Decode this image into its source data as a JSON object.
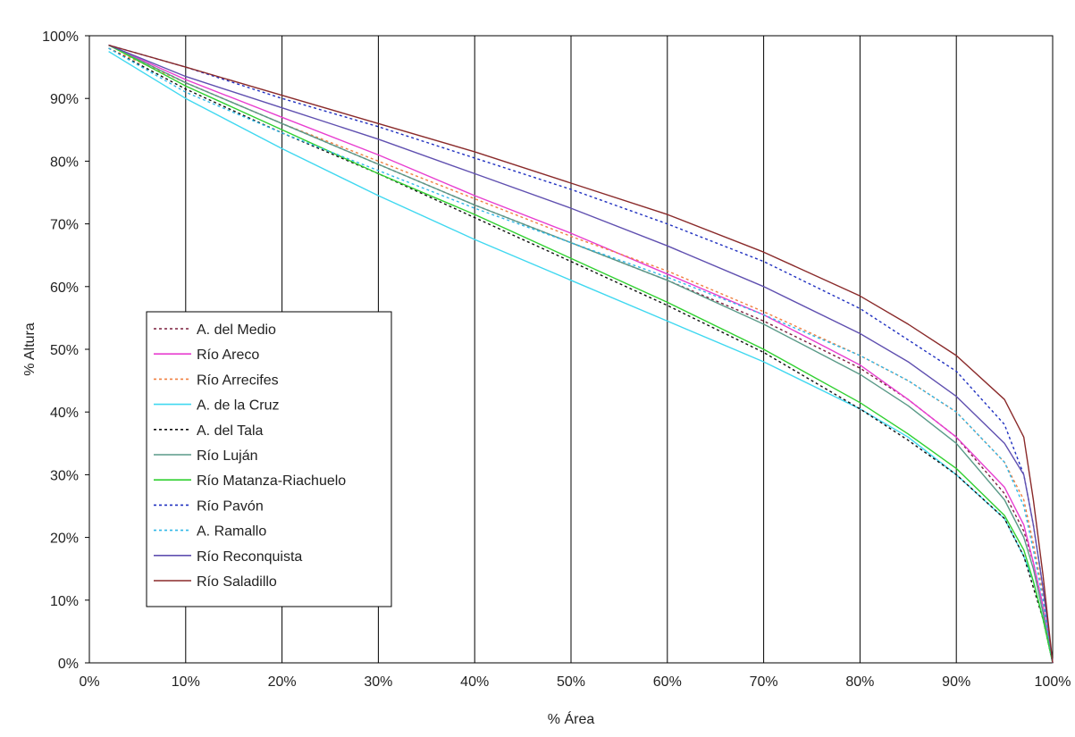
{
  "chart_data": {
    "type": "line",
    "title": "",
    "xlabel": "% Área",
    "ylabel": "% Altura",
    "xlim": [
      0,
      100
    ],
    "ylim": [
      0,
      100
    ],
    "x_ticks": [
      "0%",
      "10%",
      "20%",
      "30%",
      "40%",
      "50%",
      "60%",
      "70%",
      "80%",
      "90%",
      "100%"
    ],
    "y_ticks": [
      "0%",
      "10%",
      "20%",
      "30%",
      "40%",
      "50%",
      "60%",
      "70%",
      "80%",
      "90%",
      "100%"
    ],
    "grid": "vertical",
    "legend_position": "left-middle",
    "series": [
      {
        "name": "A. del Medio",
        "color": "#7a1f3d",
        "dash": "dotted",
        "points": [
          [
            2,
            98.5
          ],
          [
            10,
            92.5
          ],
          [
            20,
            86
          ],
          [
            30,
            79.5
          ],
          [
            40,
            73
          ],
          [
            50,
            67
          ],
          [
            60,
            61
          ],
          [
            70,
            54.5
          ],
          [
            80,
            47
          ],
          [
            85,
            42
          ],
          [
            90,
            36
          ],
          [
            95,
            27
          ],
          [
            97,
            21
          ],
          [
            98,
            16
          ],
          [
            99,
            9
          ],
          [
            100,
            0
          ]
        ]
      },
      {
        "name": "Río Areco",
        "color": "#e83ed0",
        "dash": "solid",
        "points": [
          [
            2,
            98.5
          ],
          [
            10,
            93
          ],
          [
            20,
            87
          ],
          [
            30,
            81
          ],
          [
            40,
            74.5
          ],
          [
            50,
            68.5
          ],
          [
            60,
            62
          ],
          [
            70,
            55.5
          ],
          [
            80,
            47.5
          ],
          [
            85,
            42
          ],
          [
            90,
            36
          ],
          [
            95,
            28
          ],
          [
            97,
            22
          ],
          [
            98,
            16
          ],
          [
            99,
            9
          ],
          [
            100,
            0
          ]
        ]
      },
      {
        "name": "Río Arrecifes",
        "color": "#f08040",
        "dash": "dotted",
        "points": [
          [
            2,
            98
          ],
          [
            10,
            92.5
          ],
          [
            20,
            86
          ],
          [
            30,
            80
          ],
          [
            40,
            74
          ],
          [
            50,
            68
          ],
          [
            60,
            62.5
          ],
          [
            70,
            56
          ],
          [
            80,
            49
          ],
          [
            85,
            45
          ],
          [
            90,
            40
          ],
          [
            95,
            32
          ],
          [
            97,
            26
          ],
          [
            98,
            19
          ],
          [
            99,
            11
          ],
          [
            100,
            0
          ]
        ]
      },
      {
        "name": "A. de la Cruz",
        "color": "#40d8f0",
        "dash": "solid",
        "points": [
          [
            2,
            97.5
          ],
          [
            10,
            90
          ],
          [
            20,
            82
          ],
          [
            30,
            74.5
          ],
          [
            40,
            67.5
          ],
          [
            50,
            61
          ],
          [
            60,
            54.5
          ],
          [
            70,
            48
          ],
          [
            80,
            40.5
          ],
          [
            85,
            36
          ],
          [
            90,
            30
          ],
          [
            95,
            23
          ],
          [
            97,
            17
          ],
          [
            98,
            13
          ],
          [
            99,
            7
          ],
          [
            100,
            0
          ]
        ]
      },
      {
        "name": "A. del Tala",
        "color": "#111111",
        "dash": "dotted",
        "points": [
          [
            2,
            98
          ],
          [
            10,
            91.5
          ],
          [
            20,
            84.5
          ],
          [
            30,
            78
          ],
          [
            40,
            71
          ],
          [
            50,
            64
          ],
          [
            60,
            57
          ],
          [
            70,
            49.5
          ],
          [
            80,
            40.5
          ],
          [
            85,
            35.5
          ],
          [
            90,
            30
          ],
          [
            95,
            23
          ],
          [
            97,
            17
          ],
          [
            98,
            12
          ],
          [
            99,
            7
          ],
          [
            100,
            0
          ]
        ]
      },
      {
        "name": "Río Luján",
        "color": "#5a9a88",
        "dash": "solid",
        "points": [
          [
            2,
            98.5
          ],
          [
            10,
            92.5
          ],
          [
            20,
            86
          ],
          [
            30,
            79.5
          ],
          [
            40,
            73
          ],
          [
            50,
            67
          ],
          [
            60,
            61
          ],
          [
            70,
            54
          ],
          [
            80,
            46
          ],
          [
            85,
            41
          ],
          [
            90,
            35
          ],
          [
            95,
            26
          ],
          [
            97,
            20
          ],
          [
            98,
            15
          ],
          [
            99,
            8
          ],
          [
            100,
            0
          ]
        ]
      },
      {
        "name": "Río Matanza-Riachuelo",
        "color": "#30d030",
        "dash": "solid",
        "points": [
          [
            2,
            98.5
          ],
          [
            10,
            92
          ],
          [
            20,
            85
          ],
          [
            30,
            78
          ],
          [
            40,
            71.5
          ],
          [
            50,
            64.5
          ],
          [
            60,
            57.5
          ],
          [
            70,
            50
          ],
          [
            80,
            41.5
          ],
          [
            85,
            36.5
          ],
          [
            90,
            31
          ],
          [
            95,
            23.5
          ],
          [
            97,
            18
          ],
          [
            98,
            13
          ],
          [
            99,
            7
          ],
          [
            100,
            0
          ]
        ]
      },
      {
        "name": "Río Pavón",
        "color": "#2030c0",
        "dash": "dotted",
        "points": [
          [
            2,
            98.5
          ],
          [
            10,
            95
          ],
          [
            20,
            90
          ],
          [
            30,
            85.5
          ],
          [
            40,
            80.5
          ],
          [
            50,
            75.5
          ],
          [
            60,
            70
          ],
          [
            70,
            64
          ],
          [
            80,
            56.5
          ],
          [
            85,
            51.5
          ],
          [
            90,
            46.5
          ],
          [
            95,
            38
          ],
          [
            97,
            30
          ],
          [
            98,
            22
          ],
          [
            99,
            12
          ],
          [
            100,
            0
          ]
        ]
      },
      {
        "name": "A. Ramallo",
        "color": "#30b8e8",
        "dash": "dotted",
        "points": [
          [
            2,
            98
          ],
          [
            10,
            91
          ],
          [
            20,
            84.5
          ],
          [
            30,
            78.5
          ],
          [
            40,
            72.5
          ],
          [
            50,
            67
          ],
          [
            60,
            61.5
          ],
          [
            70,
            55.5
          ],
          [
            80,
            49
          ],
          [
            85,
            45
          ],
          [
            90,
            40
          ],
          [
            95,
            32
          ],
          [
            97,
            25
          ],
          [
            98,
            18
          ],
          [
            99,
            10
          ],
          [
            100,
            0
          ]
        ]
      },
      {
        "name": "Río Reconquista",
        "color": "#6050b0",
        "dash": "solid",
        "points": [
          [
            2,
            98.5
          ],
          [
            10,
            93.5
          ],
          [
            20,
            88.5
          ],
          [
            30,
            83.5
          ],
          [
            40,
            78
          ],
          [
            50,
            72.5
          ],
          [
            60,
            66.5
          ],
          [
            70,
            60
          ],
          [
            80,
            52.5
          ],
          [
            85,
            48
          ],
          [
            90,
            42.5
          ],
          [
            95,
            35
          ],
          [
            97,
            30
          ],
          [
            98,
            22
          ],
          [
            99,
            12
          ],
          [
            100,
            0
          ]
        ]
      },
      {
        "name": "Río Saladillo",
        "color": "#8a2a2a",
        "dash": "solid",
        "points": [
          [
            2,
            98.5
          ],
          [
            10,
            95
          ],
          [
            20,
            90.5
          ],
          [
            30,
            86
          ],
          [
            40,
            81.5
          ],
          [
            50,
            76.5
          ],
          [
            60,
            71.5
          ],
          [
            70,
            65.5
          ],
          [
            80,
            58.5
          ],
          [
            85,
            54
          ],
          [
            90,
            49
          ],
          [
            95,
            42
          ],
          [
            97,
            36
          ],
          [
            98,
            26
          ],
          [
            99,
            14
          ],
          [
            100,
            0
          ]
        ]
      }
    ]
  }
}
